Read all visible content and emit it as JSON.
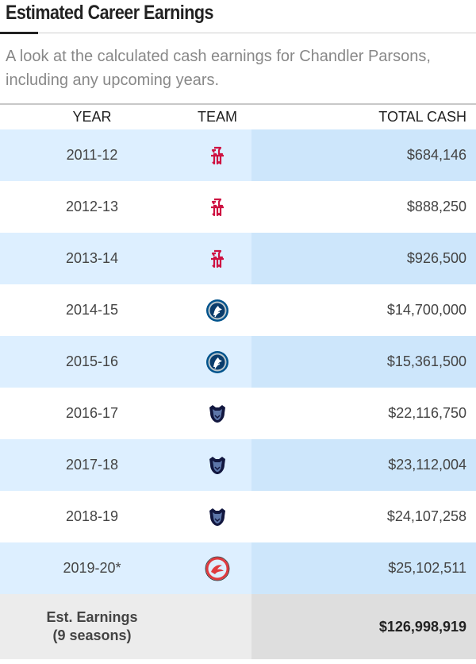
{
  "header": {
    "title": "Estimated Career Earnings",
    "subtitle": "A look at the calculated cash earnings for Chandler Parsons, including any upcoming years."
  },
  "table": {
    "columns": {
      "year": "YEAR",
      "team": "TEAM",
      "cash": "TOTAL CASH"
    },
    "rows": [
      {
        "year": "2011-12",
        "team_logo": "rockets-logo-icon",
        "cash": "$684,146"
      },
      {
        "year": "2012-13",
        "team_logo": "rockets-logo-icon",
        "cash": "$888,250"
      },
      {
        "year": "2013-14",
        "team_logo": "rockets-logo-icon",
        "cash": "$926,500"
      },
      {
        "year": "2014-15",
        "team_logo": "mavericks-logo-icon",
        "cash": "$14,700,000"
      },
      {
        "year": "2015-16",
        "team_logo": "mavericks-logo-icon",
        "cash": "$15,361,500"
      },
      {
        "year": "2016-17",
        "team_logo": "grizzlies-logo-icon",
        "cash": "$22,116,750"
      },
      {
        "year": "2017-18",
        "team_logo": "grizzlies-logo-icon",
        "cash": "$23,112,004"
      },
      {
        "year": "2018-19",
        "team_logo": "grizzlies-logo-icon",
        "cash": "$24,107,258"
      },
      {
        "year": "2019-20*",
        "team_logo": "hawks-logo-icon",
        "cash": "$25,102,511"
      }
    ],
    "footer": {
      "label_line1": "Est. Earnings",
      "label_line2": "(9 seasons)",
      "total": "$126,998,919"
    }
  },
  "colors": {
    "row_shade": "#ddefff",
    "cash_shade": "#cde6fb",
    "footer_bg": "#ececec",
    "rockets_red": "#ce1141",
    "mavericks_blue": "#00538c",
    "grizzlies_navy": "#12173f",
    "hawks_red": "#e03a3e"
  }
}
